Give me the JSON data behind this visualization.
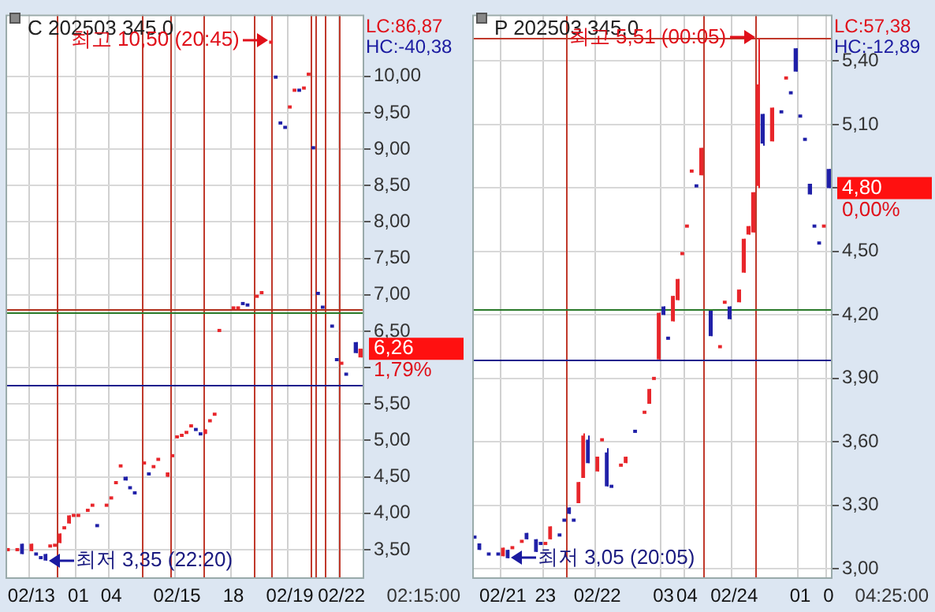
{
  "chart_data": [
    {
      "type": "candlestick",
      "title": "C 202503 345,0",
      "categories": [
        null,
        null,
        null,
        null,
        null,
        "02/13",
        null,
        null,
        null,
        null,
        null,
        null,
        null,
        null,
        null,
        "01",
        null,
        null,
        null,
        null,
        null,
        null,
        "04",
        null,
        null,
        null,
        null,
        null,
        null,
        null,
        null,
        null,
        null,
        null,
        null,
        null,
        "02/15",
        null,
        null,
        null,
        null,
        null,
        null,
        null,
        null,
        null,
        null,
        null,
        "18",
        null,
        null,
        null,
        null,
        null,
        null,
        null,
        null,
        null,
        null,
        null,
        "02/19",
        null,
        null,
        null,
        null,
        null,
        null,
        null,
        null,
        null,
        null,
        "02/22",
        null,
        null,
        null,
        null
      ],
      "ohlc": [
        [
          3.5,
          3.5,
          3.5,
          3.5
        ],
        null,
        [
          3.5,
          3.5,
          3.5,
          3.5
        ],
        [
          3.58,
          3.58,
          3.44,
          3.44
        ],
        null,
        [
          3.48,
          3.58,
          3.48,
          3.58
        ],
        [
          3.44,
          3.44,
          3.44,
          3.44
        ],
        [
          3.39,
          3.39,
          3.39,
          3.39
        ],
        [
          3.44,
          3.44,
          3.35,
          3.35
        ],
        [
          3.55,
          3.55,
          3.55,
          3.55
        ],
        [
          3.56,
          3.56,
          3.56,
          3.56
        ],
        [
          3.59,
          3.72,
          3.59,
          3.72
        ],
        [
          3.8,
          3.8,
          3.8,
          3.8
        ],
        [
          3.86,
          3.97,
          3.86,
          3.97
        ],
        [
          3.97,
          3.97,
          3.97,
          3.97
        ],
        [
          3.97,
          3.97,
          3.97,
          3.97
        ],
        null,
        [
          4.04,
          4.04,
          4.04,
          4.04
        ],
        [
          4.11,
          4.11,
          4.11,
          4.11
        ],
        [
          3.83,
          3.83,
          3.83,
          3.83
        ],
        null,
        [
          4.11,
          4.11,
          4.11,
          4.11
        ],
        [
          4.21,
          4.21,
          4.21,
          4.21
        ],
        [
          4.42,
          4.42,
          4.42,
          4.42
        ],
        [
          4.65,
          4.65,
          4.65,
          4.65
        ],
        [
          4.5,
          4.5,
          4.45,
          4.45
        ],
        [
          4.35,
          4.35,
          4.35,
          4.35
        ],
        [
          4.28,
          4.28,
          4.28,
          4.28
        ],
        null,
        [
          4.69,
          4.69,
          4.69,
          4.69
        ],
        [
          4.54,
          4.54,
          4.54,
          4.54
        ],
        [
          4.64,
          4.64,
          4.64,
          4.64
        ],
        [
          4.74,
          4.74,
          4.74,
          4.74
        ],
        null,
        [
          4.5,
          4.56,
          4.5,
          4.56
        ],
        [
          4.79,
          4.79,
          4.79,
          4.79
        ],
        [
          5.03,
          5.07,
          5.03,
          5.07
        ],
        [
          5.07,
          5.07,
          5.07,
          5.07
        ],
        [
          5.11,
          5.11,
          5.11,
          5.11
        ],
        [
          5.2,
          5.2,
          5.2,
          5.2
        ],
        [
          5.15,
          5.15,
          5.15,
          5.15
        ],
        [
          5.09,
          5.09,
          5.09,
          5.09
        ],
        [
          5.09,
          5.15,
          5.09,
          5.15
        ],
        [
          5.27,
          5.27,
          5.27,
          5.27
        ],
        [
          5.36,
          5.36,
          5.36,
          5.36
        ],
        [
          6.51,
          6.51,
          6.51,
          6.51
        ],
        null,
        null,
        [
          6.82,
          6.82,
          6.82,
          6.82
        ],
        [
          6.82,
          6.82,
          6.82,
          6.82
        ],
        [
          6.88,
          6.88,
          6.88,
          6.88
        ],
        [
          6.86,
          6.86,
          6.86,
          6.86
        ],
        null,
        [
          6.98,
          6.98,
          6.98,
          6.98
        ],
        [
          7.03,
          7.03,
          7.03,
          7.03
        ],
        null,
        [
          10.47,
          10.5,
          10.47,
          10.47
        ],
        [
          9.99,
          9.99,
          9.99,
          9.99
        ],
        [
          9.36,
          9.36,
          9.36,
          9.36
        ],
        [
          9.3,
          9.3,
          9.3,
          9.3
        ],
        [
          9.58,
          9.58,
          9.58,
          9.58
        ],
        [
          9.81,
          9.81,
          9.81,
          9.81
        ],
        [
          9.81,
          9.81,
          9.81,
          9.81
        ],
        [
          9.84,
          9.84,
          9.84,
          9.84
        ],
        [
          10.03,
          10.03,
          10.03,
          10.03
        ],
        [
          9.02,
          9.02,
          9.02,
          9.02
        ],
        [
          7.02,
          7.02,
          7.02,
          7.02
        ],
        [
          6.83,
          6.83,
          6.83,
          6.83
        ],
        null,
        [
          6.57,
          6.57,
          6.57,
          6.57
        ],
        [
          6.11,
          6.11,
          6.11,
          6.11
        ],
        [
          6.06,
          6.06,
          6.06,
          6.06
        ],
        [
          5.91,
          5.91,
          5.91,
          5.91
        ],
        null,
        [
          6.35,
          6.35,
          6.2,
          6.2
        ],
        [
          6.14,
          6.26,
          6.14,
          6.26
        ]
      ],
      "colors": [
        "#e8262b",
        null,
        "#e8262b",
        "#2020a8",
        null,
        "#e8262b",
        "#2020a8",
        "#2020a8",
        "#2020a8",
        "#e8262b",
        "#e8262b",
        "#e8262b",
        "#e8262b",
        "#e8262b",
        "#e8262b",
        "#e8262b",
        null,
        "#e8262b",
        "#e8262b",
        "#2020a8",
        null,
        "#e8262b",
        "#e8262b",
        "#e8262b",
        "#e8262b",
        "#2020a8",
        "#2020a8",
        "#2020a8",
        null,
        "#e8262b",
        "#2020a8",
        "#e8262b",
        "#e8262b",
        null,
        "#e8262b",
        "#e8262b",
        "#e8262b",
        "#e8262b",
        "#e8262b",
        "#e8262b",
        "#2020a8",
        "#2020a8",
        "#e8262b",
        "#e8262b",
        "#e8262b",
        "#e8262b",
        null,
        null,
        "#e8262b",
        "#e8262b",
        "#2020a8",
        "#2020a8",
        null,
        "#e8262b",
        "#e8262b",
        null,
        "#e8262b",
        "#2020a8",
        "#2020a8",
        "#2020a8",
        "#e8262b",
        "#e8262b",
        "#2020a8",
        "#e8262b",
        "#e8262b",
        "#2020a8",
        "#2020a8",
        "#2020a8",
        null,
        "#2020a8",
        "#2020a8",
        "#e8262b",
        "#2020a8",
        null,
        "#2020a8",
        "#e8262b"
      ],
      "ylim": [
        3.12,
        10.85
      ],
      "yticks": [
        {
          "value": 3.5,
          "label": "3,50"
        },
        {
          "value": 4,
          "label": "4,00"
        },
        {
          "value": 4.5,
          "label": "4,50"
        },
        {
          "value": 5,
          "label": "5,00"
        },
        {
          "value": 5.5,
          "label": "5,50"
        },
        {
          "value": 6,
          "label": null
        },
        {
          "value": 6.5,
          "label": "6,50"
        },
        {
          "value": 7,
          "label": "7,00"
        },
        {
          "value": 7.5,
          "label": "7,50"
        },
        {
          "value": 8,
          "label": "8,00"
        },
        {
          "value": 8.5,
          "label": "8,50"
        },
        {
          "value": 9,
          "label": "9,00"
        },
        {
          "value": 9.5,
          "label": "9,50"
        },
        {
          "value": 10,
          "label": "10,00"
        }
      ],
      "grid": true,
      "ref_lines": [
        {
          "axis": "y",
          "value": 6.81,
          "color": "#b0301c"
        },
        {
          "axis": "y",
          "value": 6.75,
          "color": "#2a7a2a"
        },
        {
          "axis": "y",
          "value": 5.76,
          "color": "#1c1c8c"
        }
      ],
      "annotations": [
        "최고 10,50 (20:45)",
        "최저 3,35 (22:20)",
        "LC:86,87",
        "HC:-40,38",
        "6,26",
        "1,79%",
        "02:15:00"
      ]
    },
    {
      "type": "candlestick",
      "title": "P 202503 345,0",
      "categories": [
        null,
        null,
        null,
        null,
        null,
        null,
        "02/21",
        null,
        null,
        null,
        null,
        null,
        null,
        null,
        null,
        "23",
        null,
        null,
        null,
        null,
        null,
        null,
        null,
        null,
        null,
        null,
        "02/22",
        null,
        null,
        null,
        null,
        null,
        null,
        null,
        null,
        null,
        null,
        null,
        null,
        null,
        "03",
        null,
        null,
        null,
        null,
        "04",
        null,
        null,
        null,
        null,
        null,
        null,
        null,
        null,
        null,
        "02/24",
        null,
        null,
        null,
        null,
        null,
        null,
        null,
        null,
        null,
        null,
        null,
        null,
        null,
        "01",
        null,
        null,
        null,
        null,
        null,
        "0"
      ],
      "ohlc": [
        [
          3.15,
          3.15,
          3.15,
          3.15
        ],
        [
          3.12,
          3.12,
          3.09,
          3.09
        ],
        null,
        [
          3.07,
          3.07,
          3.07,
          3.07
        ],
        null,
        [
          3.07,
          3.07,
          3.07,
          3.07
        ],
        [
          3.06,
          3.1,
          3.06,
          3.1
        ],
        [
          3.09,
          3.09,
          3.05,
          3.05
        ],
        [
          3.1,
          3.1,
          3.1,
          3.1
        ],
        null,
        [
          3.13,
          3.13,
          3.13,
          3.13
        ],
        [
          3.17,
          3.17,
          3.14,
          3.14
        ],
        null,
        [
          3.14,
          3.14,
          3.08,
          3.08
        ],
        [
          3.12,
          3.12,
          3.12,
          3.12
        ],
        [
          3.12,
          3.12,
          3.12,
          3.12
        ],
        [
          3.14,
          3.2,
          3.14,
          3.2
        ],
        null,
        [
          3.16,
          3.16,
          3.16,
          3.16
        ],
        [
          3.23,
          3.23,
          3.23,
          3.23
        ],
        [
          3.29,
          3.29,
          3.26,
          3.26
        ],
        [
          3.23,
          3.23,
          3.23,
          3.23
        ],
        [
          3.31,
          3.41,
          3.31,
          3.41
        ],
        [
          3.43,
          3.64,
          3.43,
          3.63
        ],
        [
          3.61,
          3.63,
          3.5,
          3.5
        ],
        null,
        [
          3.46,
          3.53,
          3.46,
          3.53
        ],
        [
          3.61,
          3.61,
          3.61,
          3.61
        ],
        [
          3.55,
          3.57,
          3.39,
          3.39
        ],
        [
          3.39,
          3.39,
          3.39,
          3.39
        ],
        null,
        [
          3.49,
          3.49,
          3.49,
          3.49
        ],
        [
          3.5,
          3.53,
          3.5,
          3.53
        ],
        null,
        [
          3.65,
          3.65,
          3.65,
          3.65
        ],
        null,
        [
          3.74,
          3.74,
          3.74,
          3.74
        ],
        [
          3.78,
          3.85,
          3.78,
          3.85
        ],
        [
          3.9,
          3.9,
          3.9,
          3.9
        ],
        [
          3.99,
          4.21,
          3.99,
          4.21
        ],
        [
          4.24,
          4.24,
          4.2,
          4.2
        ],
        [
          4.09,
          4.09,
          4.09,
          4.09
        ],
        [
          4.17,
          4.29,
          4.17,
          4.29
        ],
        [
          4.27,
          4.37,
          4.27,
          4.37
        ],
        [
          4.49,
          4.49,
          4.49,
          4.49
        ],
        [
          4.62,
          4.62,
          4.62,
          4.62
        ],
        [
          4.88,
          4.88,
          4.88,
          4.88
        ],
        [
          4.81,
          4.81,
          4.81,
          4.81
        ],
        [
          4.86,
          4.99,
          4.86,
          4.99
        ],
        null,
        [
          4.22,
          4.22,
          4.1,
          4.1
        ],
        null,
        [
          4.05,
          4.05,
          4.05,
          4.05
        ],
        [
          4.26,
          4.26,
          4.26,
          4.26
        ],
        [
          4.24,
          4.24,
          4.18,
          4.18
        ],
        null,
        [
          4.26,
          4.32,
          4.26,
          4.32
        ],
        [
          4.4,
          4.56,
          4.4,
          4.56
        ],
        [
          4.58,
          4.62,
          4.58,
          4.62
        ],
        [
          4.59,
          4.78,
          4.59,
          4.78
        ],
        [
          4.81,
          5.51,
          4.8,
          5.29
        ],
        [
          5.15,
          5.15,
          5.0,
          5.01
        ],
        null,
        [
          5.02,
          5.18,
          5.02,
          5.18
        ],
        null,
        [
          5.16,
          5.16,
          5.16,
          5.16
        ],
        [
          5.32,
          5.32,
          5.32,
          5.32
        ],
        [
          5.25,
          5.25,
          5.25,
          5.25
        ],
        [
          5.46,
          5.46,
          5.35,
          5.35
        ],
        [
          5.14,
          5.14,
          5.14,
          5.14
        ],
        [
          5.03,
          5.03,
          5.03,
          5.03
        ],
        [
          4.82,
          4.82,
          4.77,
          4.77
        ],
        [
          4.62,
          4.62,
          4.62,
          4.62
        ],
        [
          4.54,
          4.54,
          4.54,
          4.54
        ],
        [
          4.62,
          4.62,
          4.62,
          4.62
        ],
        [
          4.89,
          4.89,
          4.8,
          4.8
        ]
      ],
      "colors": [
        "#2020a8",
        "#2020a8",
        null,
        "#2020a8",
        null,
        "#2020a8",
        "#e8262b",
        "#2020a8",
        "#e8262b",
        null,
        "#e8262b",
        "#2020a8",
        null,
        "#2020a8",
        "#2020a8",
        "#e8262b",
        "#e8262b",
        null,
        "#2020a8",
        "#2020a8",
        "#2020a8",
        "#2020a8",
        "#e8262b",
        "#e8262b",
        "#2020a8",
        null,
        "#e8262b",
        "#e8262b",
        "#2020a8",
        "#2020a8",
        null,
        "#e8262b",
        "#e8262b",
        null,
        "#2020a8",
        null,
        "#e8262b",
        "#e8262b",
        "#e8262b",
        "#e8262b",
        "#2020a8",
        "#2020a8",
        "#e8262b",
        "#e8262b",
        "#e8262b",
        "#e8262b",
        "#e8262b",
        "#2020a8",
        "#e8262b",
        null,
        "#2020a8",
        null,
        "#e8262b",
        "#e8262b",
        "#2020a8",
        null,
        "#e8262b",
        "#e8262b",
        "#e8262b",
        "#e8262b",
        "#e8262b",
        "#2020a8",
        null,
        "#e8262b",
        null,
        "#2020a8",
        "#e8262b",
        "#2020a8",
        "#2020a8",
        "#2020a8",
        "#2020a8",
        "#2020a8",
        "#2020a8",
        "#2020a8",
        "#e8262b",
        "#2020a8"
      ],
      "ylim": [
        2.96,
        5.62
      ],
      "yticks": [
        {
          "value": 3,
          "label": "3,00"
        },
        {
          "value": 3.3,
          "label": "3,30"
        },
        {
          "value": 3.6,
          "label": "3,60"
        },
        {
          "value": 3.9,
          "label": "3,90"
        },
        {
          "value": 4.2,
          "label": "4,20"
        },
        {
          "value": 4.5,
          "label": "4,50"
        },
        {
          "value": 4.8,
          "label": null
        },
        {
          "value": 5.1,
          "label": "5,10"
        },
        {
          "value": 5.4,
          "label": "5,40"
        }
      ],
      "grid": true,
      "ref_lines": [
        {
          "axis": "y",
          "value": 5.51,
          "color": "#c0392b"
        },
        {
          "axis": "y",
          "value": 4.23,
          "color": "#2a7a2a"
        },
        {
          "axis": "y",
          "value": 3.99,
          "color": "#1c1c8c"
        }
      ],
      "annotations": [
        "최고 5,51 (00:05)",
        "최저 3,05 (20:05)",
        "LC:57,38",
        "HC:-12,89",
        "4,80",
        "0,00%",
        "04:25:00"
      ]
    }
  ]
}
